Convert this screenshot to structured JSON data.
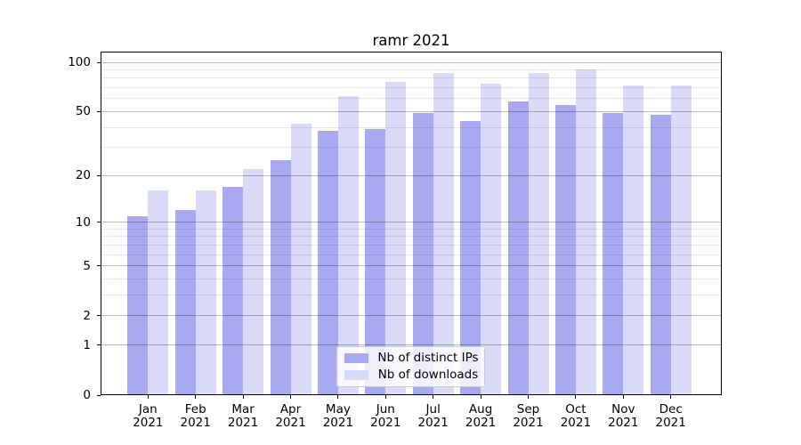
{
  "title": "ramr 2021",
  "legend": {
    "position": "lower center",
    "items": [
      {
        "label": "Nb of distinct IPs",
        "color": "#a9a9f2"
      },
      {
        "label": "Nb of downloads",
        "color": "#dadaf8"
      }
    ]
  },
  "chart_data": {
    "type": "bar",
    "title": "ramr 2021",
    "categories": [
      "Jan 2021",
      "Feb 2021",
      "Mar 2021",
      "Apr 2021",
      "May 2021",
      "Jun 2021",
      "Jul 2021",
      "Aug 2021",
      "Sep 2021",
      "Oct 2021",
      "Nov 2021",
      "Dec 2021"
    ],
    "series": [
      {
        "name": "Nb of distinct IPs",
        "color": "#a9a9f2",
        "values": [
          11,
          12,
          17,
          25,
          38,
          39,
          49,
          44,
          58,
          55,
          49,
          48
        ]
      },
      {
        "name": "Nb of downloads",
        "color": "#dadaf8",
        "values": [
          16,
          16,
          22,
          42,
          62,
          76,
          86,
          74,
          86,
          90,
          72,
          72
        ]
      }
    ],
    "xlabel": "",
    "ylabel": "",
    "y_scale": "log1p",
    "y_ticks": [
      0,
      1,
      2,
      5,
      10,
      20,
      50,
      100
    ],
    "y_minor_ticks": [
      3,
      4,
      6,
      7,
      8,
      9,
      30,
      40,
      60,
      70,
      80,
      90
    ],
    "ylim": [
      0,
      116
    ],
    "grid": true,
    "grid_above_bars": true,
    "legend_position": "lower center"
  }
}
